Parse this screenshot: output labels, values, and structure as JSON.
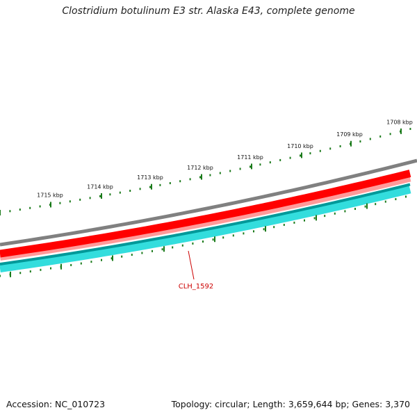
{
  "title": "Clostridium botulinum E3 str. Alaska E43, complete genome",
  "accession": "Accession: NC_010723",
  "topology": "Topology: circular; Length: 3,659,644 bp; Genes: 3,370",
  "kbp_ticks": [
    "1708 kbp",
    "1709 kbp",
    "1710 kbp",
    "1711 kbp",
    "1712 kbp",
    "1713 kbp",
    "1714 kbp",
    "1715 kbp"
  ],
  "gene_label": "CLH_1592",
  "colors": {
    "backbone": "#808080",
    "forward_strand": "#ff0000",
    "forward_strand_light": "#ff9a9a",
    "reverse_strand_dark": "#009999",
    "reverse_strand": "#33dddd",
    "tick": "#1a7a1a",
    "label": "#cc0000"
  }
}
